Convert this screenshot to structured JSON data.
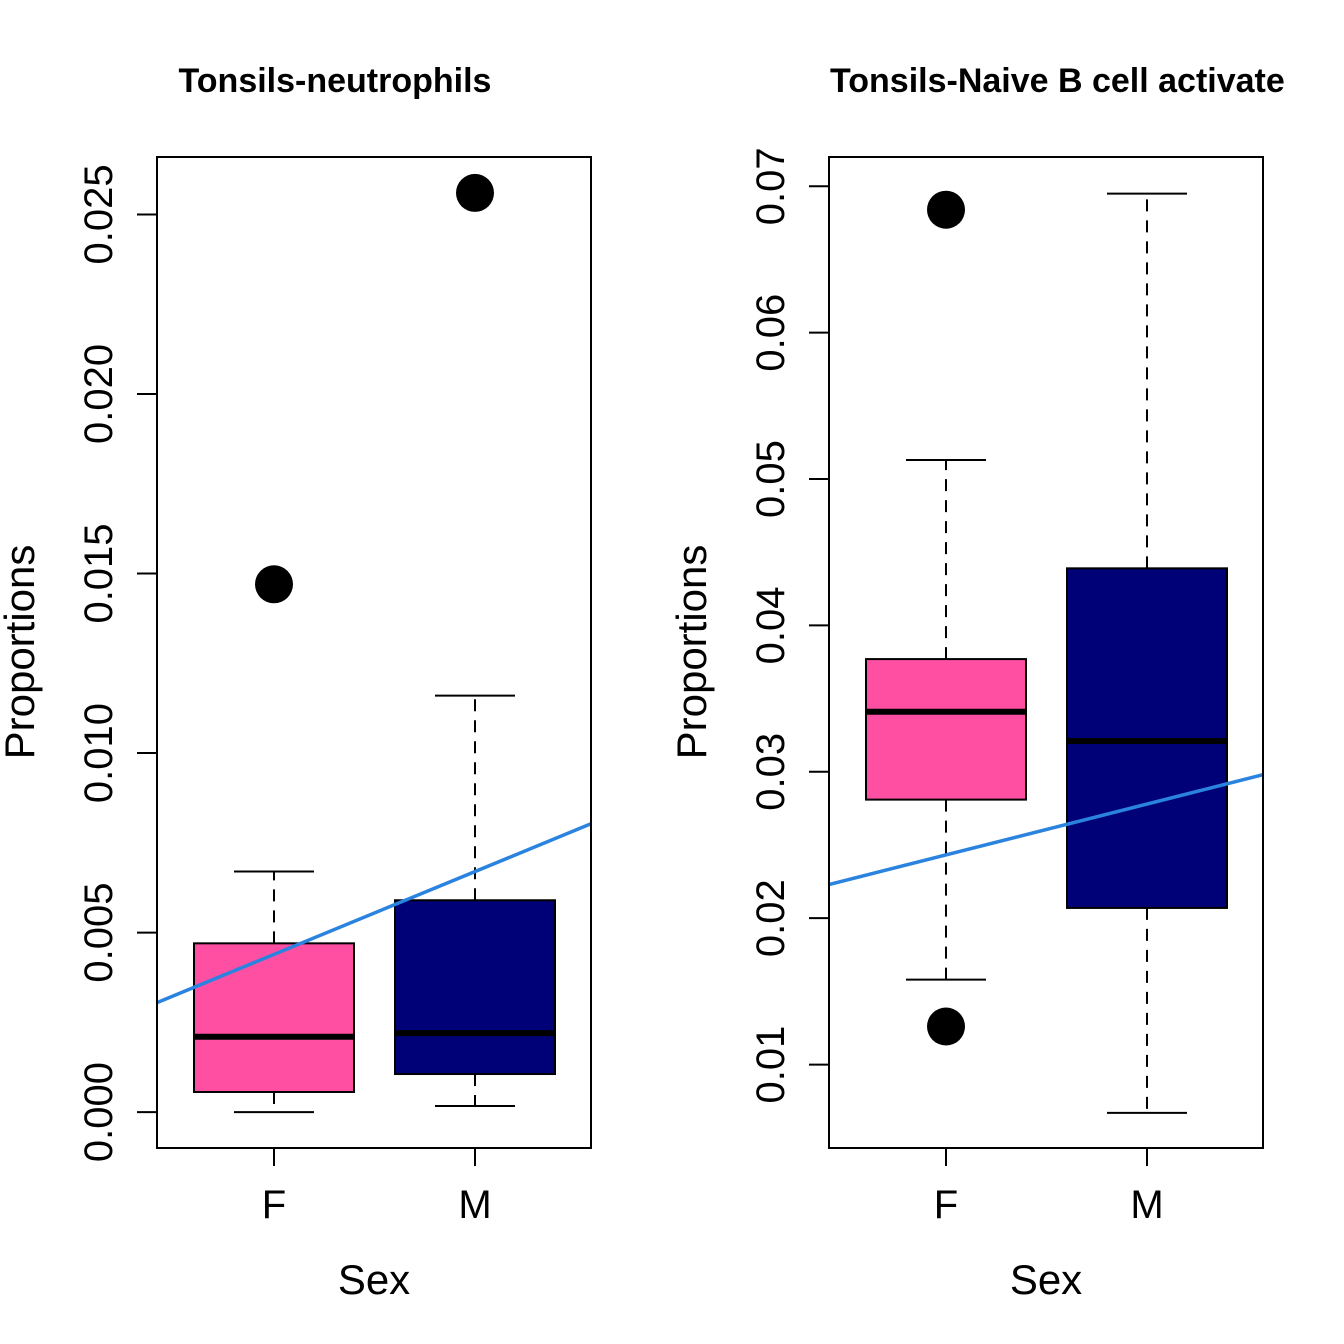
{
  "chart_data": [
    {
      "type": "box",
      "title": "Tonsils-neutrophils",
      "xlabel": "Sex",
      "ylabel": "Proportions",
      "categories": [
        "F",
        "M"
      ],
      "ylim": [
        -0.001,
        0.0266
      ],
      "yticks": [
        0.0,
        0.005,
        0.01,
        0.015,
        0.02,
        0.025
      ],
      "ytick_labels": [
        "0.000",
        "0.005",
        "0.010",
        "0.015",
        "0.020",
        "0.025"
      ],
      "boxes": [
        {
          "category": "F",
          "color": "#FF4FA3",
          "whisker_low": 0.0,
          "q1": 0.00056,
          "median": 0.0021,
          "q3": 0.0047,
          "whisker_high": 0.0067,
          "outliers": [
            0.0147
          ]
        },
        {
          "category": "M",
          "color": "#000077",
          "whisker_low": 0.00017,
          "q1": 0.00106,
          "median": 0.0022,
          "q3": 0.0059,
          "whisker_high": 0.0116,
          "outliers": [
            0.0256
          ]
        }
      ],
      "trend_line": {
        "color": "#2A83DF",
        "y_at_left_edge": 0.00305,
        "y_at_right_edge": 0.00803
      },
      "grid": false,
      "legend": "none"
    },
    {
      "type": "box",
      "title": "Tonsils-Naive B cell activate",
      "xlabel": "Sex",
      "ylabel": "Proportions",
      "categories": [
        "F",
        "M"
      ],
      "ylim": [
        0.0043,
        0.072
      ],
      "yticks": [
        0.01,
        0.02,
        0.03,
        0.04,
        0.05,
        0.06,
        0.07
      ],
      "ytick_labels": [
        "0.01",
        "0.02",
        "0.03",
        "0.04",
        "0.05",
        "0.06",
        "0.07"
      ],
      "boxes": [
        {
          "category": "F",
          "color": "#FF4FA3",
          "whisker_low": 0.0158,
          "q1": 0.0281,
          "median": 0.0341,
          "q3": 0.0377,
          "whisker_high": 0.0513,
          "outliers": [
            0.0126,
            0.0684
          ]
        },
        {
          "category": "M",
          "color": "#000077",
          "whisker_low": 0.0067,
          "q1": 0.0207,
          "median": 0.0321,
          "q3": 0.0439,
          "whisker_high": 0.0695,
          "outliers": []
        }
      ],
      "trend_line": {
        "color": "#2A83DF",
        "y_at_left_edge": 0.0223,
        "y_at_right_edge": 0.0298
      },
      "grid": false,
      "legend": "none"
    }
  ]
}
